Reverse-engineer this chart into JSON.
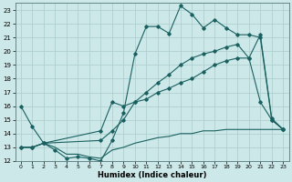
{
  "xlabel": "Humidex (Indice chaleur)",
  "bg_color": "#cce8e8",
  "grid_color": "#b0d0d0",
  "line_color": "#1a6060",
  "xlim": [
    -0.5,
    23.5
  ],
  "ylim": [
    12,
    23.5
  ],
  "yticks": [
    12,
    13,
    14,
    15,
    16,
    17,
    18,
    19,
    20,
    21,
    22,
    23
  ],
  "xticks": [
    0,
    1,
    2,
    3,
    4,
    5,
    6,
    7,
    8,
    9,
    10,
    11,
    12,
    13,
    14,
    15,
    16,
    17,
    18,
    19,
    20,
    21,
    22,
    23
  ],
  "line1_x": [
    0,
    1,
    2,
    3,
    4,
    5,
    6,
    7,
    8,
    9,
    10,
    11,
    12,
    13,
    14,
    15,
    16,
    17,
    18,
    19,
    20,
    21,
    22,
    23
  ],
  "line1_y": [
    16.0,
    14.5,
    13.3,
    12.8,
    12.2,
    12.3,
    12.2,
    12.0,
    13.5,
    15.5,
    19.8,
    21.8,
    21.8,
    21.3,
    23.3,
    22.7,
    21.7,
    22.3,
    21.7,
    21.2,
    21.2,
    21.0,
    15.0,
    14.3
  ],
  "line2_x": [
    0,
    1,
    2,
    3,
    4,
    5,
    6,
    7,
    8,
    9,
    10,
    11,
    12,
    13,
    14,
    15,
    16,
    17,
    18,
    19,
    20,
    21,
    22,
    23
  ],
  "line2_y": [
    13.0,
    13.0,
    13.3,
    13.0,
    12.5,
    12.5,
    12.3,
    12.2,
    12.8,
    13.0,
    13.3,
    13.5,
    13.7,
    13.8,
    14.0,
    14.0,
    14.2,
    14.2,
    14.3,
    14.3,
    14.3,
    14.3,
    14.3,
    14.3
  ],
  "line3_x": [
    0,
    1,
    2,
    7,
    8,
    9,
    10,
    11,
    12,
    13,
    14,
    15,
    16,
    17,
    18,
    19,
    20,
    21,
    22,
    23
  ],
  "line3_y": [
    13.0,
    13.0,
    13.3,
    13.5,
    14.2,
    15.0,
    16.3,
    17.0,
    17.7,
    18.3,
    19.0,
    19.5,
    19.8,
    20.0,
    20.3,
    20.5,
    19.5,
    16.3,
    15.0,
    14.3
  ],
  "line4_x": [
    0,
    1,
    2,
    7,
    8,
    9,
    10,
    11,
    12,
    13,
    14,
    15,
    16,
    17,
    18,
    19,
    20,
    21,
    22,
    23
  ],
  "line4_y": [
    13.0,
    13.0,
    13.3,
    14.2,
    16.3,
    16.0,
    16.3,
    16.5,
    17.0,
    17.3,
    17.7,
    18.0,
    18.5,
    19.0,
    19.3,
    19.5,
    19.5,
    21.2,
    15.1,
    14.3
  ]
}
